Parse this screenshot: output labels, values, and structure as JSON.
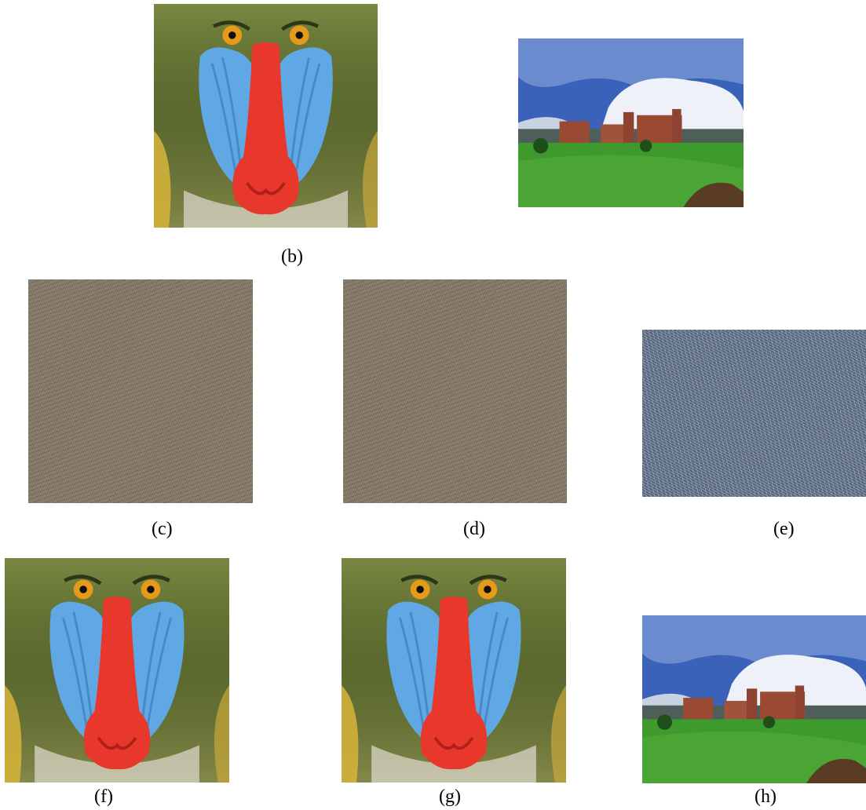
{
  "panels": {
    "a": {
      "caption": "",
      "content": "baboon-plain-image"
    },
    "b": {
      "caption": "(b)",
      "content": "campus-plain-image"
    },
    "c": {
      "caption": "(c)",
      "content": "baboon-cipher-image"
    },
    "d": {
      "caption": "(d)",
      "content": "baboon-cipher-image"
    },
    "e": {
      "caption": "(e)",
      "content": "campus-cipher-image"
    },
    "f": {
      "caption": "(f)",
      "content": "baboon-decrypted-image"
    },
    "g": {
      "caption": "(g)",
      "content": "baboon-decrypted-image"
    },
    "h": {
      "caption": "(h)",
      "content": "campus-decrypted-image"
    }
  },
  "colors": {
    "fur": "#6f7d3c",
    "nose": "#e8382c",
    "cheek": "#6fb0e6",
    "eye": "#e59a1a",
    "sky": "#3a62b8",
    "cloud": "#eef2f8",
    "grass": "#3f9a2e",
    "building": "#9a4a32"
  }
}
